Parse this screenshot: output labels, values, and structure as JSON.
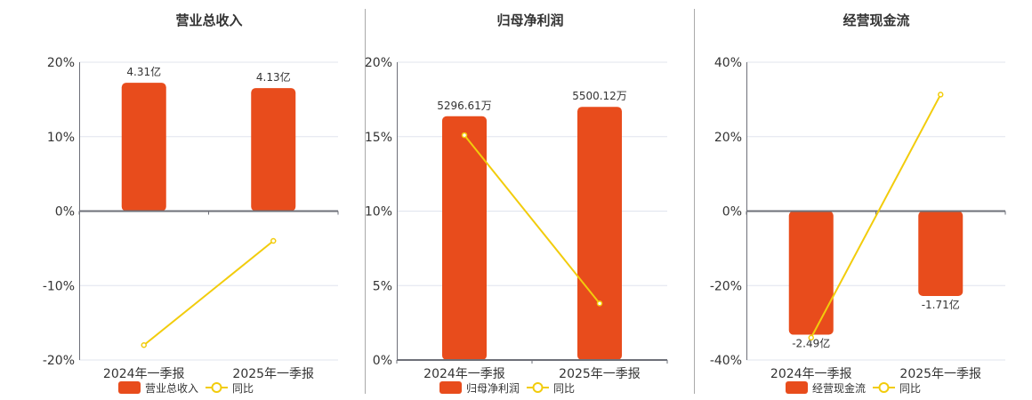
{
  "colors": {
    "bar": "#e84c1c",
    "line": "#f2cc0c",
    "grid": "#e0e4ee",
    "axis": "#6e7079",
    "separator": "#999999"
  },
  "chart_data": [
    {
      "type": "bar+line",
      "title": "营业总收入",
      "categories": [
        "2024年一季报",
        "2025年一季报"
      ],
      "bar_series": {
        "name": "营业总收入",
        "values": [
          4.31,
          4.13
        ],
        "labels": [
          "4.31亿",
          "4.13亿"
        ],
        "unit": "亿",
        "axis_range": [
          -5,
          5
        ]
      },
      "line_series": {
        "name": "同比",
        "values": [
          -18.0,
          -4.0
        ],
        "unit": "%"
      },
      "ylim": [
        -20,
        20
      ],
      "yticks": [
        "20%",
        "10%",
        "0%",
        "-10%",
        "-20%"
      ],
      "ytick_values": [
        20,
        10,
        0,
        -10,
        -20
      ],
      "label_position": "top",
      "grid": true,
      "legend": "bottom"
    },
    {
      "type": "bar+line",
      "title": "归母净利润",
      "categories": [
        "2024年一季报",
        "2025年一季报"
      ],
      "bar_series": {
        "name": "归母净利润",
        "values": [
          5296.61,
          5500.12
        ],
        "labels": [
          "5296.61万",
          "5500.12万"
        ],
        "unit": "万",
        "axis_range": [
          0,
          6470
        ]
      },
      "line_series": {
        "name": "同比",
        "values": [
          15.1,
          3.8
        ],
        "unit": "%"
      },
      "ylim": [
        0,
        20
      ],
      "yticks": [
        "20%",
        "15%",
        "10%",
        "5%",
        "0%"
      ],
      "ytick_values": [
        20,
        15,
        10,
        5,
        0
      ],
      "label_position": "top",
      "grid": true,
      "legend": "bottom"
    },
    {
      "type": "bar+line",
      "title": "经营现金流",
      "categories": [
        "2024年一季报",
        "2025年一季报"
      ],
      "bar_series": {
        "name": "经营现金流",
        "values": [
          -2.49,
          -1.71
        ],
        "labels": [
          "-2.49亿",
          "-1.71亿"
        ],
        "unit": "亿",
        "axis_range": [
          -3,
          3
        ]
      },
      "line_series": {
        "name": "同比",
        "values": [
          -34.0,
          31.3
        ],
        "unit": "%"
      },
      "ylim": [
        -40,
        40
      ],
      "yticks": [
        "40%",
        "20%",
        "0%",
        "-20%",
        "-40%"
      ],
      "ytick_values": [
        40,
        20,
        0,
        -20,
        -40
      ],
      "label_position": "bottom",
      "grid": true,
      "legend": "bottom"
    }
  ]
}
